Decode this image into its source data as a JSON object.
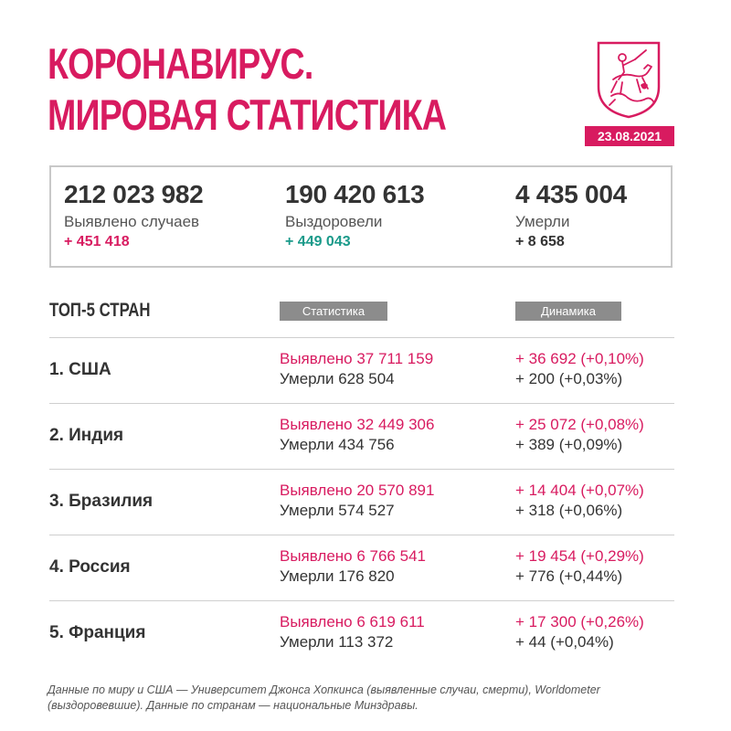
{
  "header": {
    "title_line1": "КОРОНАВИРУС.",
    "title_line2": "МИРОВАЯ СТАТИСТИКА",
    "date": "23.08.2021",
    "emblem_icon": "moscow-coat-of-arms-icon",
    "accent_color": "#d81b60"
  },
  "summary": {
    "cases": {
      "value": "212 023 982",
      "label": "Выявлено случаев",
      "delta": "+ 451 418"
    },
    "recovered": {
      "value": "190 420 613",
      "label": "Выздоровели",
      "delta": "+ 449 043"
    },
    "deaths": {
      "value": "4 435 004",
      "label": "Умерли",
      "delta": "+ 8 658"
    }
  },
  "top5": {
    "heading": "ТОП-5 СТРАН",
    "col_stats": "Статистика",
    "col_dynamics": "Динамика",
    "rows": [
      {
        "country": "1. США",
        "cases": "Выявлено 37 711 159",
        "deaths": "Умерли 628 504",
        "cases_delta": "+ 36 692 (+0,10%)",
        "deaths_delta": "+ 200 (+0,03%)"
      },
      {
        "country": "2. Индия",
        "cases": "Выявлено 32 449 306",
        "deaths": "Умерли 434 756",
        "cases_delta": "+ 25 072 (+0,08%)",
        "deaths_delta": "+ 389 (+0,09%)"
      },
      {
        "country": "3. Бразилия",
        "cases": "Выявлено 20 570 891",
        "deaths": "Умерли 574 527",
        "cases_delta": "+ 14 404 (+0,07%)",
        "deaths_delta": "+ 318 (+0,06%)"
      },
      {
        "country": "4. Россия",
        "cases": "Выявлено 6 766 541",
        "deaths": "Умерли 176 820",
        "cases_delta": "+ 19 454 (+0,29%)",
        "deaths_delta": "+ 776 (+0,44%)"
      },
      {
        "country": "5. Франция",
        "cases": "Выявлено 6 619 611",
        "deaths": "Умерли 113 372",
        "cases_delta": "+ 17 300 (+0,26%)",
        "deaths_delta": "+ 44 (+0,04%)"
      }
    ]
  },
  "footnote": "Данные по миру и США — Университет Джонса Хопкинса (выявленные случаи, смерти), Worldometer (выздоровевшие). Данные по странам — национальные Минздравы."
}
